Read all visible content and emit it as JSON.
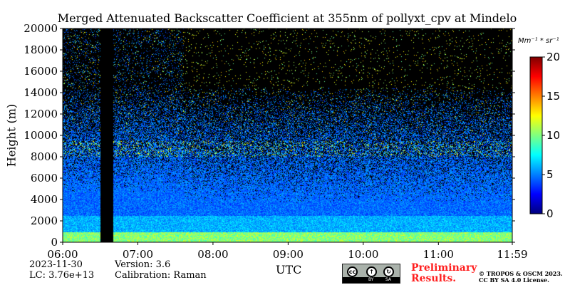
{
  "chart_data": {
    "type": "heatmap",
    "title": "Merged Attenuated Backscatter Coefficient at 355nm of pollyxt_cpv at Mindelo",
    "xlabel": "UTC",
    "ylabel": "Height (m)",
    "x_start": "06:00",
    "x_end": "11:59",
    "x_ticks": [
      "06:00",
      "07:00",
      "08:00",
      "09:00",
      "10:00",
      "11:00",
      "11:59"
    ],
    "y_ticks": [
      "0",
      "2000",
      "4000",
      "6000",
      "8000",
      "10000",
      "12000",
      "14000",
      "16000",
      "18000",
      "20000"
    ],
    "ylim": [
      0,
      20000
    ],
    "colorbar": {
      "label": "Mm⁻¹ * sr⁻¹",
      "ticks": [
        "0",
        "5",
        "10",
        "15",
        "20"
      ],
      "range": [
        0,
        20
      ],
      "colormap": "jet"
    },
    "no_data_intervals": [
      [
        "06:30",
        "06:40"
      ]
    ],
    "features": [
      {
        "type": "cloud layer",
        "time_range": [
          "06:00",
          "11:59"
        ],
        "height_range": [
          8000,
          9500
        ]
      },
      {
        "type": "boundary layer",
        "time_range": [
          "06:00",
          "11:59"
        ],
        "height_range": [
          0,
          1000
        ]
      }
    ]
  },
  "meta": {
    "date": "2023-11-30",
    "lc": "LC: 3.76e+13",
    "version": "Version: 3.6",
    "calibration": "Calibration: Raman"
  },
  "notice": {
    "line1": "Preliminary",
    "line2": "Results.",
    "copyright1": "© TROPOS & OSCM 2023.",
    "copyright2": "CC BY SA 4.0 License."
  },
  "license_badge": {
    "cc": "cc",
    "by": "BY",
    "sa": "SA"
  }
}
